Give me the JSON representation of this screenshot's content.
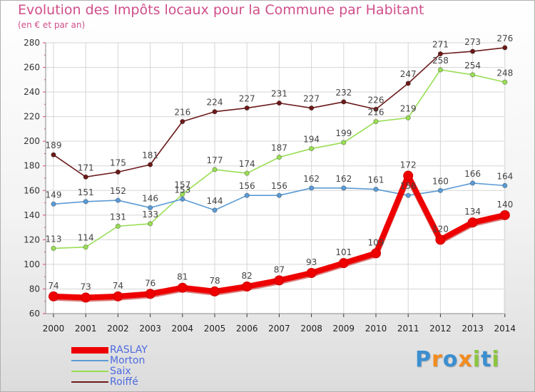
{
  "chart_data": {
    "type": "line",
    "title": "Evolution des Impôts locaux pour la Commune par Habitant",
    "subtitle": "(en € et par an)",
    "x": [
      "2000",
      "2001",
      "2002",
      "2003",
      "2004",
      "2005",
      "2006",
      "2007",
      "2008",
      "2009",
      "2010",
      "2011",
      "2012",
      "2013",
      "2014"
    ],
    "ylim": [
      60,
      280
    ],
    "yticks": [
      60,
      80,
      100,
      120,
      140,
      160,
      180,
      200,
      220,
      240,
      260,
      280
    ],
    "grid": true,
    "legend_position": "bottom-left",
    "series": [
      {
        "name": "Roiffé",
        "color": "#6b1a1a",
        "values": [
          189,
          171,
          175,
          181,
          216,
          224,
          227,
          231,
          227,
          232,
          226,
          247,
          271,
          273,
          276
        ],
        "labels": [
          "189",
          "171",
          "175",
          "181",
          "216",
          "224",
          "227",
          "231",
          "227",
          "232",
          "226",
          "247",
          "271",
          "273",
          "276"
        ]
      },
      {
        "name": "Saix",
        "color": "#99dd55",
        "values": [
          113,
          114,
          131,
          133,
          157,
          177,
          174,
          187,
          194,
          199,
          216,
          219,
          258,
          254,
          248
        ],
        "labels": [
          "113",
          "114",
          "131",
          "133",
          "157",
          "177",
          "174",
          "187",
          "194",
          "199",
          "216",
          "219",
          "258",
          "254",
          "248"
        ]
      },
      {
        "name": "Morton",
        "color": "#5b9bd5",
        "values": [
          149,
          151,
          152,
          146,
          153,
          144,
          156,
          156,
          162,
          162,
          161,
          156,
          160,
          166,
          164
        ],
        "labels": [
          "149",
          "151",
          "152",
          "146",
          "153",
          "144",
          "156",
          "156",
          "162",
          "162",
          "161",
          "156",
          "160",
          "166",
          "164"
        ]
      },
      {
        "name": "RASLAY",
        "color": "#ee0000",
        "values": [
          74,
          73,
          74,
          76,
          81,
          78,
          82,
          87,
          93,
          101,
          109,
          172,
          120,
          134,
          140
        ],
        "labels": [
          "74",
          "73",
          "74",
          "76",
          "81",
          "78",
          "82",
          "87",
          "93",
          "101",
          "109",
          "172",
          "120",
          "134",
          "140"
        ]
      }
    ]
  },
  "legend": {
    "items": [
      {
        "name": "RASLAY",
        "color": "#ee0000",
        "width": 9
      },
      {
        "name": "Morton",
        "color": "#5b9bd5",
        "width": 2
      },
      {
        "name": "Saix",
        "color": "#99dd55",
        "width": 2
      },
      {
        "name": "Roiffé",
        "color": "#6b1a1a",
        "width": 2
      }
    ]
  },
  "logo": {
    "letters": [
      "P",
      "r",
      "o",
      "x",
      "i",
      "t",
      "i"
    ],
    "colors": [
      "#3b8fd1",
      "#f28c1f",
      "#3b8fd1",
      "#f28c1f",
      "#8cc63f",
      "#3b8fd1",
      "#8cc63f"
    ]
  }
}
